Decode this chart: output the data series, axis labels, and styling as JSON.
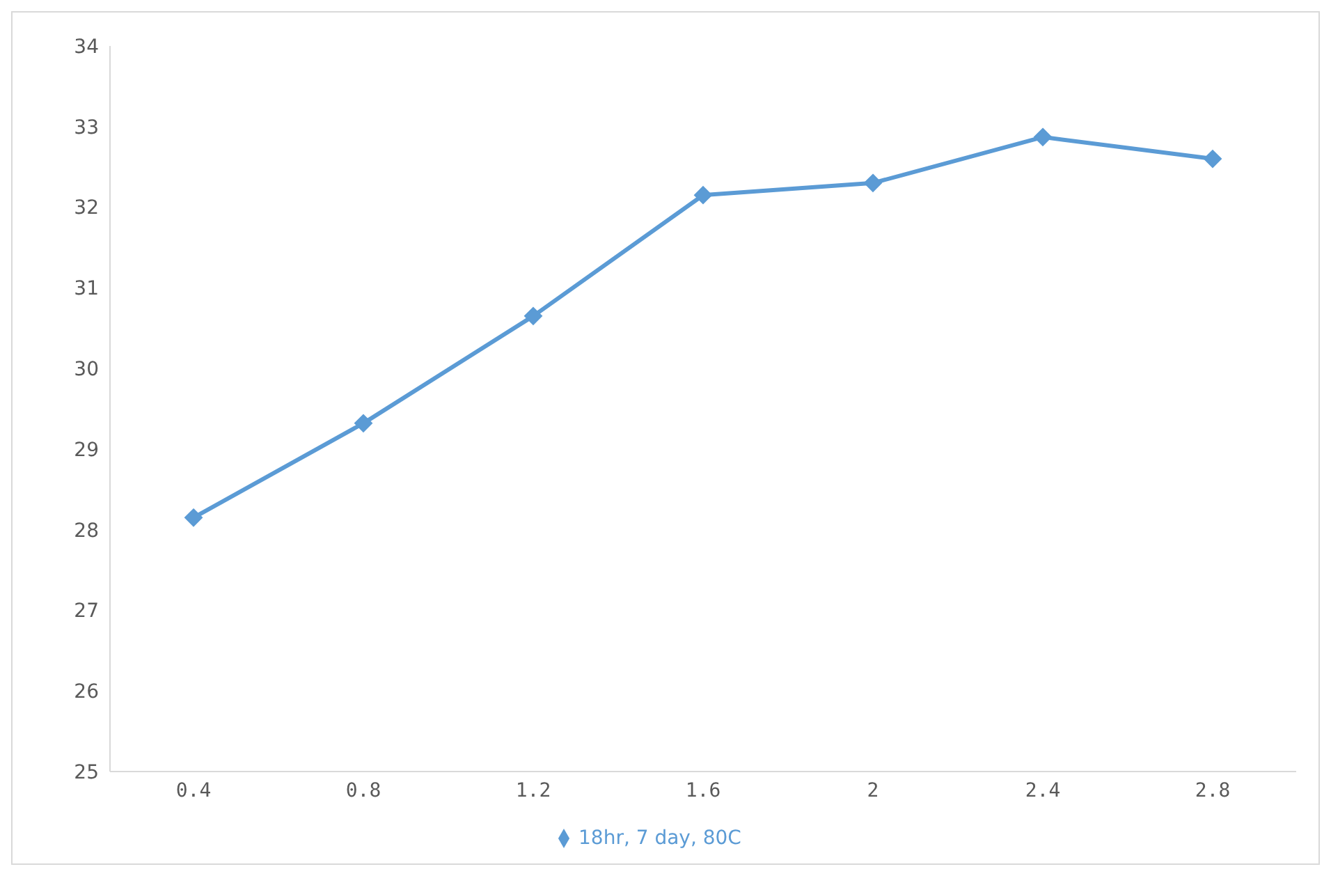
{
  "chart_data": {
    "type": "line",
    "categories": [
      "0.4",
      "0.8",
      "1.2",
      "1.6",
      "2",
      "2.4",
      "2.8"
    ],
    "series": [
      {
        "name": "18hr, 7 day, 80C",
        "color": "#5b9bd5",
        "values": [
          28.15,
          29.32,
          30.65,
          32.15,
          32.3,
          32.87,
          32.6
        ]
      }
    ],
    "ylim": [
      25,
      34
    ],
    "yticks": [
      25,
      26,
      27,
      28,
      29,
      30,
      31,
      32,
      33,
      34
    ],
    "grid": false,
    "legend": "bottom",
    "marker": "diamond",
    "line_style": "solid"
  }
}
